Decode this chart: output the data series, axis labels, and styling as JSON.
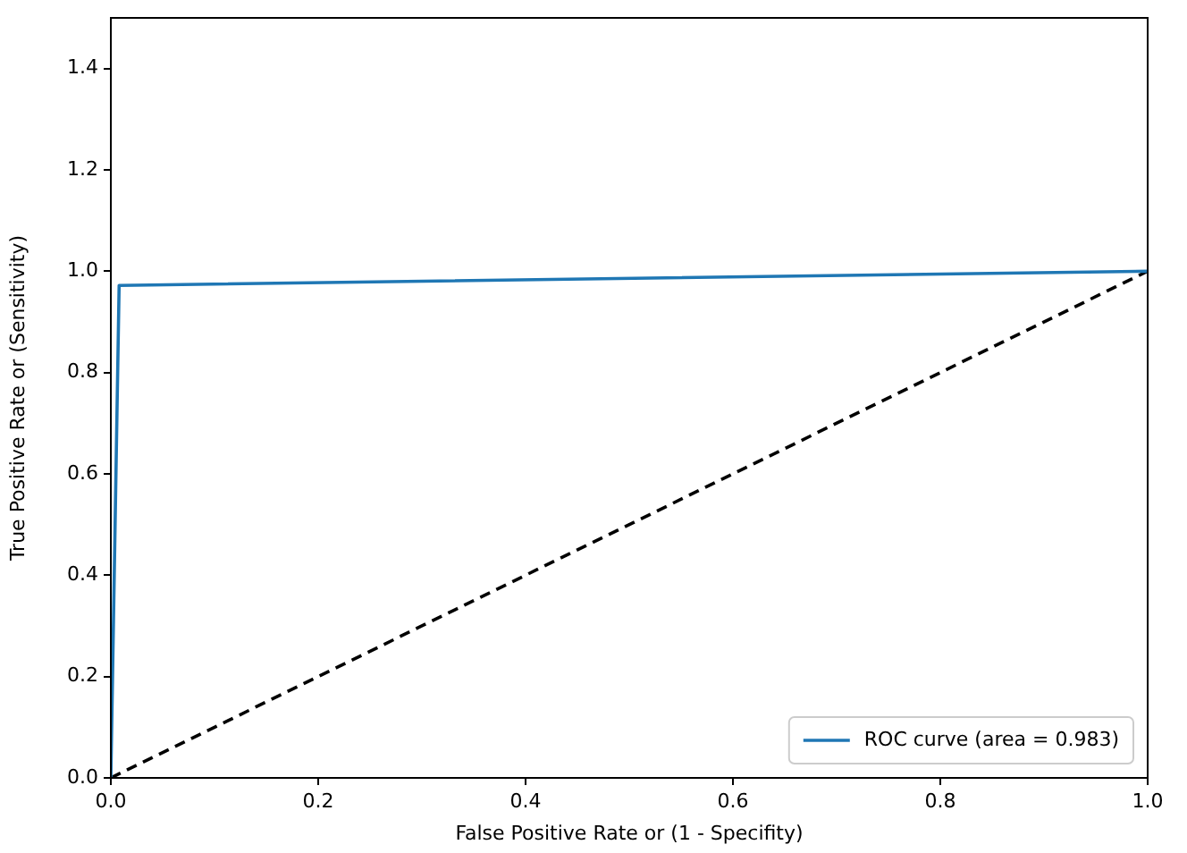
{
  "chart_data": {
    "type": "line",
    "xlabel": "False Positive Rate or (1 - Specifity)",
    "ylabel": "True Positive Rate or (Sensitivity)",
    "series": [
      {
        "name": "ROC curve (area = 0.983)",
        "color": "#1f77b4",
        "x": [
          0,
          0.008,
          1
        ],
        "values": [
          0,
          0.972,
          1
        ],
        "line_style": "solid"
      },
      {
        "color": "#000000",
        "x": [
          0,
          1
        ],
        "values": [
          0,
          1
        ],
        "line_style": "dashed"
      }
    ],
    "xlim": [
      0,
      1
    ],
    "ylim": [
      0,
      1.5
    ],
    "xticks": [
      {
        "value": 0,
        "label": "0.0"
      },
      {
        "value": 0.2,
        "label": "0.2"
      },
      {
        "value": 0.4,
        "label": "0.4"
      },
      {
        "value": 0.6,
        "label": "0.6"
      },
      {
        "value": 0.8,
        "label": "0.8"
      },
      {
        "value": 1,
        "label": "1.0"
      }
    ],
    "yticks": [
      {
        "value": 0,
        "label": "0.0"
      },
      {
        "value": 0.2,
        "label": "0.2"
      },
      {
        "value": 0.4,
        "label": "0.4"
      },
      {
        "value": 0.6,
        "label": "0.6"
      },
      {
        "value": 0.8,
        "label": "0.8"
      },
      {
        "value": 1,
        "label": "1.0"
      },
      {
        "value": 1.2,
        "label": "1.2"
      },
      {
        "value": 1.4,
        "label": "1.4"
      }
    ],
    "grid": false,
    "legend": "bottom right",
    "marker": "none"
  }
}
